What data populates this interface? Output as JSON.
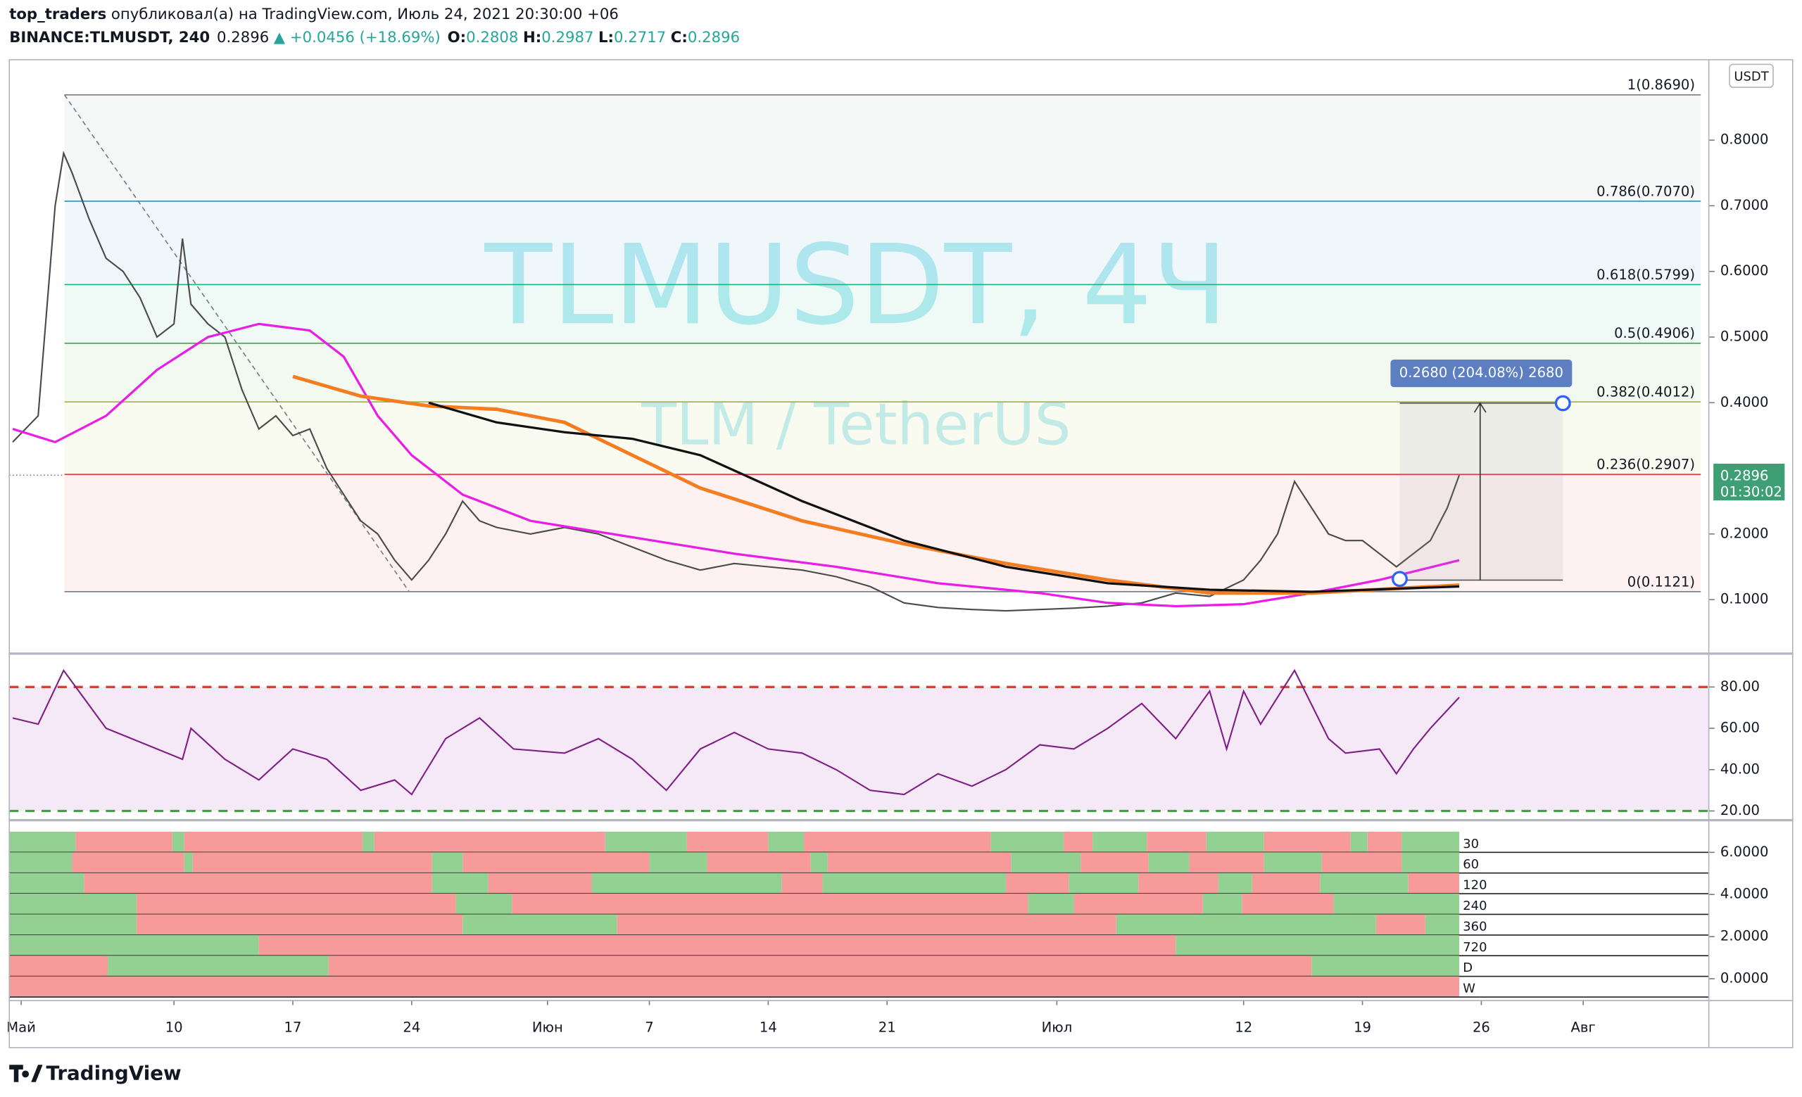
{
  "header": {
    "author": "top_traders",
    "published": "опубликовал(а) на TradingView.com, Июль 24, 2021 20:30:00 +06",
    "symbol": "BINANCE:TLMUSDT, 240",
    "last": 0.2896,
    "change": "▲ +0.0456 (+18.69%)",
    "ohlc": [
      {
        "label": "O:",
        "value": 0.2808
      },
      {
        "label": "H:",
        "value": 0.2987
      },
      {
        "label": "L:",
        "value": 0.2717
      },
      {
        "label": "C:",
        "value": 0.2896
      }
    ]
  },
  "chart_data": [
    {
      "type": "line",
      "watermark": "TLMUSDT, 4Ч",
      "subtitle": "TLM / TetherUS",
      "axis_label": "USDT",
      "xlim": [
        -0.7,
        99.4
      ],
      "xticks": [
        {
          "value": 0,
          "label": "Май"
        },
        {
          "value": 9,
          "label": "10"
        },
        {
          "value": 16,
          "label": "17"
        },
        {
          "value": 23,
          "label": "24"
        },
        {
          "value": 31,
          "label": "Июн"
        },
        {
          "value": 37,
          "label": "7"
        },
        {
          "value": 44,
          "label": "14"
        },
        {
          "value": 51,
          "label": "21"
        },
        {
          "value": 61,
          "label": "Июл"
        },
        {
          "value": 72,
          "label": "12"
        },
        {
          "value": 79,
          "label": "19"
        },
        {
          "value": 86,
          "label": "26"
        },
        {
          "value": 92,
          "label": "Авг"
        }
      ],
      "ylim": [
        0.0195,
        0.9225
      ],
      "yticks": [
        {
          "value": 0.1,
          "label": "0.1000"
        },
        {
          "value": 0.2,
          "label": "0.2000"
        },
        {
          "value": 0.4,
          "label": "0.4000"
        },
        {
          "value": 0.5,
          "label": "0.5000"
        },
        {
          "value": 0.6,
          "label": "0.6000"
        },
        {
          "value": 0.7,
          "label": "0.7000"
        },
        {
          "value": 0.8,
          "label": "0.8000"
        }
      ],
      "series": [
        {
          "color": "#4a4a4a",
          "x": [
            -0.5,
            1,
            2,
            2.5,
            3,
            4,
            5,
            6,
            7,
            8,
            9,
            9.5,
            10,
            11,
            12,
            13,
            14,
            15,
            16,
            17,
            18,
            19,
            20,
            21,
            22,
            23,
            24,
            25,
            26,
            27,
            28,
            30,
            32,
            34,
            36,
            38,
            40,
            42,
            44,
            46,
            48,
            50,
            52,
            54,
            56,
            58,
            60,
            62,
            64,
            66,
            68,
            70,
            72,
            73,
            74,
            75,
            76,
            77,
            78,
            79,
            80,
            81,
            82,
            83,
            84,
            84.7
          ],
          "values": [
            0.34,
            0.38,
            0.7,
            0.78,
            0.75,
            0.68,
            0.62,
            0.6,
            0.56,
            0.5,
            0.52,
            0.65,
            0.55,
            0.52,
            0.5,
            0.42,
            0.36,
            0.38,
            0.35,
            0.36,
            0.3,
            0.26,
            0.22,
            0.2,
            0.16,
            0.13,
            0.16,
            0.2,
            0.25,
            0.22,
            0.21,
            0.2,
            0.21,
            0.2,
            0.18,
            0.16,
            0.145,
            0.155,
            0.15,
            0.145,
            0.135,
            0.12,
            0.095,
            0.088,
            0.085,
            0.083,
            0.085,
            0.087,
            0.09,
            0.095,
            0.11,
            0.105,
            0.13,
            0.16,
            0.2,
            0.28,
            0.24,
            0.2,
            0.19,
            0.19,
            0.17,
            0.15,
            0.17,
            0.19,
            0.24,
            0.2896
          ]
        },
        {
          "color": "#e91ee6",
          "x": [
            -0.5,
            2,
            5,
            8,
            11,
            14,
            17,
            19,
            21,
            23,
            26,
            30,
            36,
            42,
            48,
            54,
            60,
            64,
            68,
            72,
            76,
            80,
            84.7
          ],
          "values": [
            0.36,
            0.34,
            0.38,
            0.45,
            0.5,
            0.52,
            0.51,
            0.47,
            0.38,
            0.32,
            0.26,
            0.22,
            0.195,
            0.17,
            0.15,
            0.125,
            0.11,
            0.095,
            0.09,
            0.093,
            0.11,
            0.13,
            0.16
          ]
        },
        {
          "color": "#f57c1f",
          "x": [
            16,
            20,
            24,
            28,
            32,
            36,
            40,
            46,
            52,
            58,
            64,
            70,
            76,
            84.7
          ],
          "values": [
            0.44,
            0.41,
            0.395,
            0.39,
            0.37,
            0.32,
            0.27,
            0.22,
            0.185,
            0.155,
            0.13,
            0.11,
            0.11,
            0.122
          ]
        },
        {
          "color": "#111111",
          "x": [
            24,
            28,
            32,
            36,
            40,
            46,
            52,
            58,
            64,
            70,
            76,
            84.7
          ],
          "values": [
            0.4,
            0.37,
            0.355,
            0.345,
            0.32,
            0.25,
            0.19,
            0.15,
            0.125,
            0.115,
            0.112,
            0.12
          ]
        }
      ],
      "fib_levels": [
        {
          "label": "1(0.8690)",
          "price": 0.869,
          "color": "#787b86"
        },
        {
          "label": "0.786(0.7070)",
          "price": 0.707,
          "color": "#2a8fbf"
        },
        {
          "label": "0.618(0.5799)",
          "price": 0.5799,
          "color": "#1fb27a"
        },
        {
          "label": "0.5(0.4906)",
          "price": 0.4906,
          "color": "#43a83f"
        },
        {
          "label": "0.382(0.4012)",
          "price": 0.4012,
          "color": "#a3b32e"
        },
        {
          "label": "0.236(0.2907)",
          "price": 0.2907,
          "color": "#e03a3a"
        },
        {
          "label": "0(0.1121)",
          "price": 0.1121,
          "color": "#787b86"
        }
      ],
      "last_price": 0.2896,
      "countdown": "01:30:02",
      "price_color": "#3f9f74",
      "measure": "0.2680 (204.08%) 2680"
    },
    {
      "type": "line",
      "ylim": [
        16.1,
        95.6
      ],
      "yticks": [
        {
          "value": 20,
          "label": "20.00"
        },
        {
          "value": 40,
          "label": "40.00"
        },
        {
          "value": 60,
          "label": "60.00"
        },
        {
          "value": 80,
          "label": "80.00"
        }
      ],
      "band": [
        20,
        80
      ],
      "series": [
        {
          "color": "#7e1f86",
          "x": [
            -0.5,
            1,
            2.5,
            5,
            8,
            9.5,
            10,
            12,
            14,
            16,
            18,
            20,
            22,
            23,
            25,
            27,
            29,
            32,
            34,
            36,
            38,
            40,
            42,
            44,
            46,
            48,
            50,
            52,
            54,
            56,
            58,
            60,
            62,
            64,
            66,
            68,
            70,
            71,
            72,
            73,
            74,
            75,
            77,
            78,
            80,
            81,
            82,
            83,
            84.7
          ],
          "values": [
            65,
            62,
            88,
            60,
            50,
            45,
            60,
            45,
            35,
            50,
            45,
            30,
            35,
            28,
            55,
            65,
            50,
            48,
            55,
            45,
            30,
            50,
            58,
            50,
            48,
            40,
            30,
            28,
            38,
            32,
            40,
            52,
            50,
            60,
            72,
            55,
            78,
            50,
            78,
            62,
            75,
            88,
            55,
            48,
            50,
            38,
            50,
            60,
            75
          ]
        }
      ]
    },
    {
      "type": "heatmap",
      "ylim": [
        -0.98,
        7.42
      ],
      "yticks": [
        {
          "value": 0,
          "label": "0.0000"
        },
        {
          "value": 2,
          "label": "2.0000"
        },
        {
          "value": 4,
          "label": "4.0000"
        },
        {
          "value": 6,
          "label": "6.0000"
        }
      ],
      "colors": {
        "green": "#93d193",
        "red": "#f79a9a"
      },
      "rows": [
        {
          "name": "30",
          "first": "green",
          "switches": [
            3.2,
            8.9,
            9.6,
            20.1,
            20.8,
            34.4,
            39.2,
            44.0,
            46.1,
            57.1,
            61.4,
            63.1,
            66.3,
            69.8,
            73.2,
            78.3,
            79.3,
            81.3
          ]
        },
        {
          "name": "60",
          "first": "green",
          "switches": [
            3.0,
            9.6,
            10.1,
            24.2,
            26.0,
            37.0,
            40.4,
            46.5,
            47.5,
            58.3,
            62.4,
            66.4,
            68.8,
            73.2,
            76.6,
            81.3
          ]
        },
        {
          "name": "120",
          "first": "green",
          "switches": [
            3.7,
            24.2,
            27.5,
            33.6,
            44.8,
            47.2,
            58.0,
            61.7,
            65.8,
            70.5,
            72.5,
            76.5,
            81.7
          ]
        },
        {
          "name": "240",
          "first": "green",
          "switches": [
            6.8,
            25.6,
            28.9,
            59.3,
            62.0,
            69.6,
            71.9,
            77.3
          ]
        },
        {
          "name": "360",
          "first": "green",
          "switches": [
            6.8,
            26.0,
            35.1,
            64.5,
            79.8,
            82.7
          ]
        },
        {
          "name": "720",
          "first": "green",
          "switches": [
            14.0,
            68.0
          ]
        },
        {
          "name": "D",
          "first": "red",
          "switches": [
            5.1,
            18.1,
            76.0
          ]
        },
        {
          "name": "W",
          "first": "red",
          "switches": []
        }
      ]
    }
  ],
  "footer": {
    "brand": "TradingView"
  }
}
